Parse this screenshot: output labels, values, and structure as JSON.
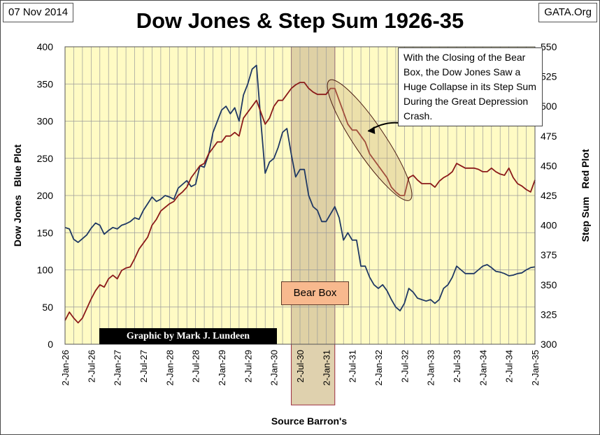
{
  "header": {
    "date": "07 Nov 2014",
    "site": "GATA.Org",
    "title": "Dow Jones & Step Sum 1926-35"
  },
  "annotation": "With the Closing of the Bear Box, the Dow Jones Saw a Huge Collapse in its Step Sum During the Great Depression Crash.",
  "bear_box_label": "Bear Box",
  "credit": "Graphic by Mark J. Lundeen",
  "chart_data": {
    "type": "line",
    "title": "Dow Jones & Step Sum 1926-35",
    "xlabel": "Source Barron's",
    "ylabel_left": "Dow Jones   Blue Plot",
    "ylabel_right": "Step Sum   Red Plot",
    "x_ticks": [
      "2-Jan-26",
      "2-Jul-26",
      "2-Jan-27",
      "2-Jul-27",
      "2-Jan-28",
      "2-Jul-28",
      "2-Jan-29",
      "2-Jul-29",
      "2-Jan-30",
      "2-Jul-30",
      "2-Jan-31",
      "2-Jul-31",
      "2-Jan-32",
      "2-Jul-32",
      "2-Jan-33",
      "2-Jul-33",
      "2-Jan-34",
      "2-Jul-34",
      "2-Jan-35"
    ],
    "ylim_left": [
      0,
      400
    ],
    "yticks_left": [
      0,
      50,
      100,
      150,
      200,
      250,
      300,
      350,
      400
    ],
    "ylim_right": [
      300,
      550
    ],
    "yticks_right": [
      300,
      325,
      350,
      375,
      400,
      425,
      450,
      475,
      500,
      525,
      550
    ],
    "grid": true,
    "shaded_region": {
      "label": "Bear Box",
      "start": "1930-05",
      "end": "1931-03"
    },
    "colors": {
      "plot_bg": "#fffbc4",
      "grid": "#9a9a9a",
      "dow": "#1f3864",
      "stepsum": "#8b1a1a",
      "bear_box_fill": "#d9c9a0",
      "bear_box_border": "#9b2a3c"
    },
    "series": [
      {
        "name": "Dow Jones",
        "axis": "left",
        "x": [
          "1926-01",
          "1926-02",
          "1926-03",
          "1926-04",
          "1926-05",
          "1926-06",
          "1926-07",
          "1926-08",
          "1926-09",
          "1926-10",
          "1926-11",
          "1926-12",
          "1927-01",
          "1927-02",
          "1927-03",
          "1927-04",
          "1927-05",
          "1927-06",
          "1927-07",
          "1927-08",
          "1927-09",
          "1927-10",
          "1927-11",
          "1927-12",
          "1928-01",
          "1928-02",
          "1928-03",
          "1928-04",
          "1928-05",
          "1928-06",
          "1928-07",
          "1928-08",
          "1928-09",
          "1928-10",
          "1928-11",
          "1928-12",
          "1929-01",
          "1929-02",
          "1929-03",
          "1929-04",
          "1929-05",
          "1929-06",
          "1929-07",
          "1929-08",
          "1929-09",
          "1929-10",
          "1929-11",
          "1929-12",
          "1930-01",
          "1930-02",
          "1930-03",
          "1930-04",
          "1930-05",
          "1930-06",
          "1930-07",
          "1930-08",
          "1930-09",
          "1930-10",
          "1930-11",
          "1930-12",
          "1931-01",
          "1931-02",
          "1931-03",
          "1931-04",
          "1931-05",
          "1931-06",
          "1931-07",
          "1931-08",
          "1931-09",
          "1931-10",
          "1931-11",
          "1931-12",
          "1932-01",
          "1932-02",
          "1932-03",
          "1932-04",
          "1932-05",
          "1932-06",
          "1932-07",
          "1932-08",
          "1932-09",
          "1932-10",
          "1932-11",
          "1932-12",
          "1933-01",
          "1933-02",
          "1933-03",
          "1933-04",
          "1933-05",
          "1933-06",
          "1933-07",
          "1933-08",
          "1933-09",
          "1933-10",
          "1933-11",
          "1933-12",
          "1934-01",
          "1934-02",
          "1934-03",
          "1934-04",
          "1934-05",
          "1934-06",
          "1934-07",
          "1934-08",
          "1934-09",
          "1934-10",
          "1934-11",
          "1934-12",
          "1935-01"
        ],
        "values": [
          157,
          155,
          141,
          137,
          142,
          147,
          156,
          163,
          160,
          148,
          153,
          157,
          155,
          160,
          162,
          165,
          170,
          168,
          180,
          189,
          198,
          192,
          195,
          200,
          198,
          195,
          210,
          215,
          220,
          212,
          215,
          240,
          238,
          255,
          285,
          300,
          315,
          320,
          310,
          318,
          300,
          335,
          350,
          370,
          375,
          300,
          230,
          245,
          250,
          265,
          285,
          290,
          255,
          225,
          235,
          235,
          200,
          185,
          180,
          165,
          165,
          175,
          185,
          170,
          140,
          150,
          140,
          140,
          105,
          105,
          90,
          80,
          75,
          80,
          72,
          60,
          50,
          45,
          55,
          75,
          70,
          62,
          60,
          58,
          60,
          55,
          60,
          75,
          80,
          90,
          105,
          100,
          95,
          95,
          95,
          100,
          105,
          107,
          103,
          98,
          97,
          95,
          92,
          93,
          95,
          96,
          100,
          103,
          104
        ]
      },
      {
        "name": "Step Sum",
        "axis": "right",
        "x": [
          "1926-01",
          "1926-02",
          "1926-03",
          "1926-04",
          "1926-05",
          "1926-06",
          "1926-07",
          "1926-08",
          "1926-09",
          "1926-10",
          "1926-11",
          "1926-12",
          "1927-01",
          "1927-02",
          "1927-03",
          "1927-04",
          "1927-05",
          "1927-06",
          "1927-07",
          "1927-08",
          "1927-09",
          "1927-10",
          "1927-11",
          "1927-12",
          "1928-01",
          "1928-02",
          "1928-03",
          "1928-04",
          "1928-05",
          "1928-06",
          "1928-07",
          "1928-08",
          "1928-09",
          "1928-10",
          "1928-11",
          "1928-12",
          "1929-01",
          "1929-02",
          "1929-03",
          "1929-04",
          "1929-05",
          "1929-06",
          "1929-07",
          "1929-08",
          "1929-09",
          "1929-10",
          "1929-11",
          "1929-12",
          "1930-01",
          "1930-02",
          "1930-03",
          "1930-04",
          "1930-05",
          "1930-06",
          "1930-07",
          "1930-08",
          "1930-09",
          "1930-10",
          "1930-11",
          "1930-12",
          "1931-01",
          "1931-02",
          "1931-03",
          "1931-04",
          "1931-05",
          "1931-06",
          "1931-07",
          "1931-08",
          "1931-09",
          "1931-10",
          "1931-11",
          "1931-12",
          "1932-01",
          "1932-02",
          "1932-03",
          "1932-04",
          "1932-05",
          "1932-06",
          "1932-07",
          "1932-08",
          "1932-09",
          "1932-10",
          "1932-11",
          "1932-12",
          "1933-01",
          "1933-02",
          "1933-03",
          "1933-04",
          "1933-05",
          "1933-06",
          "1933-07",
          "1933-08",
          "1933-09",
          "1933-10",
          "1933-11",
          "1933-12",
          "1934-01",
          "1934-02",
          "1934-03",
          "1934-04",
          "1934-05",
          "1934-06",
          "1934-07",
          "1934-08",
          "1934-09",
          "1934-10",
          "1934-11",
          "1934-12",
          "1935-01"
        ],
        "values": [
          320,
          327,
          322,
          318,
          322,
          330,
          338,
          345,
          350,
          348,
          355,
          358,
          355,
          362,
          364,
          365,
          372,
          380,
          385,
          390,
          400,
          405,
          412,
          415,
          418,
          420,
          425,
          428,
          432,
          440,
          445,
          450,
          452,
          460,
          465,
          470,
          470,
          475,
          475,
          478,
          475,
          490,
          495,
          500,
          505,
          495,
          485,
          490,
          500,
          505,
          505,
          510,
          515,
          518,
          520,
          520,
          515,
          512,
          510,
          510,
          510,
          515,
          515,
          505,
          495,
          485,
          480,
          480,
          475,
          470,
          460,
          455,
          450,
          445,
          440,
          432,
          428,
          425,
          425,
          440,
          442,
          438,
          435,
          435,
          435,
          432,
          437,
          440,
          442,
          445,
          452,
          450,
          448,
          448,
          448,
          447,
          445,
          445,
          448,
          445,
          443,
          442,
          448,
          440,
          435,
          433,
          430,
          428,
          438
        ]
      }
    ]
  }
}
